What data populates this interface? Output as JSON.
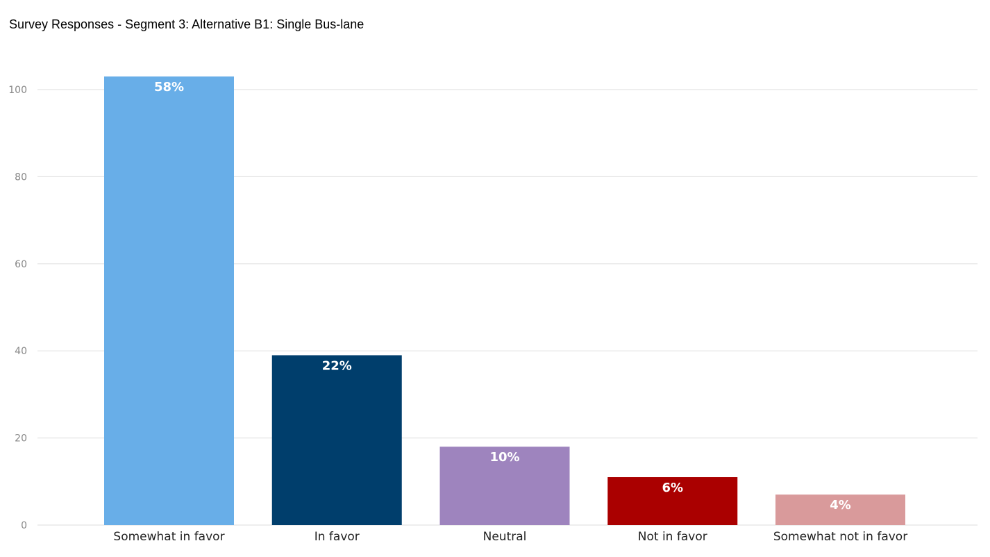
{
  "chart_data": {
    "type": "bar",
    "title": "Survey Responses - Segment 3: Alternative B1: Single Bus-lane",
    "xlabel": "",
    "ylabel": "",
    "ylim": [
      0,
      100
    ],
    "yticks": [
      0,
      20,
      40,
      60,
      80,
      100
    ],
    "grid": true,
    "categories": [
      "Somewhat in favor",
      "In favor",
      "Neutral",
      "Not in favor",
      "Somewhat not in favor"
    ],
    "values": [
      103,
      39,
      18,
      11,
      7
    ],
    "data_labels": [
      "58%",
      "22%",
      "10%",
      "6%",
      "4%"
    ],
    "colors": [
      "#68aee8",
      "#003e6c",
      "#9e84be",
      "#aa0000",
      "#d99a9b"
    ],
    "gridline_color": "#e4e4e4"
  }
}
